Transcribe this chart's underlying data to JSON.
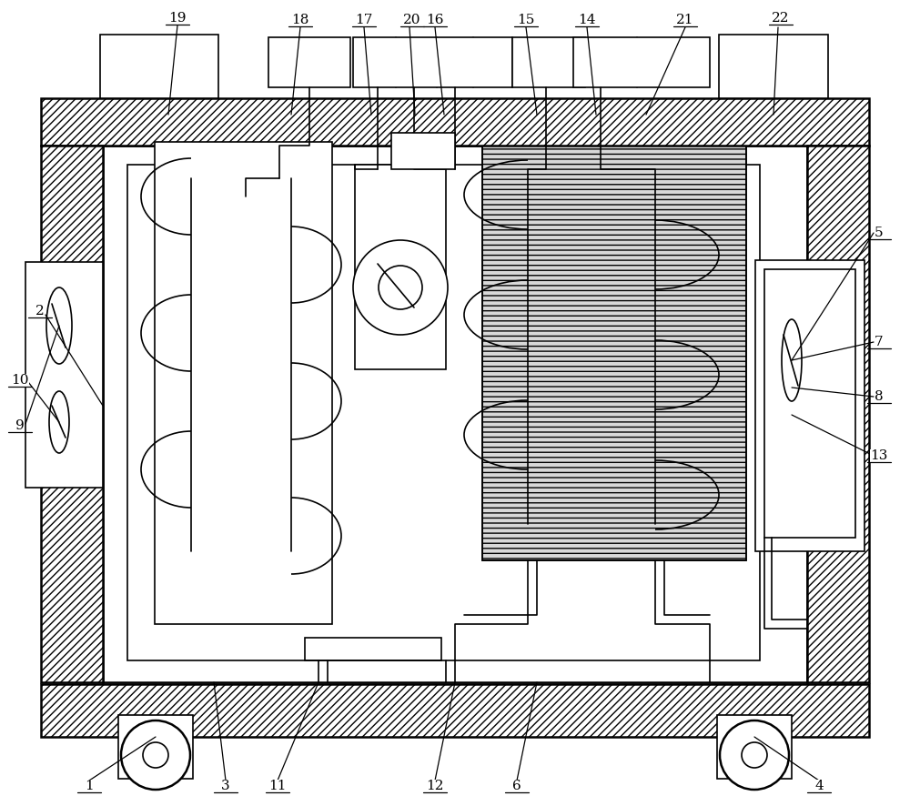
{
  "fig_width": 10.0,
  "fig_height": 8.86,
  "bg_color": "#ffffff",
  "lc": "#000000",
  "lw": 1.2,
  "lw2": 1.8,
  "fs": 11
}
